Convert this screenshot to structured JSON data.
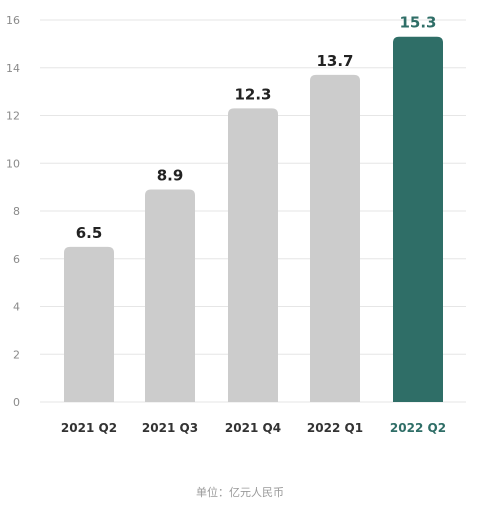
{
  "chart_data": {
    "type": "bar",
    "title": "",
    "xlabel": "",
    "ylabel": "",
    "unit_note": "单位：亿元人民币",
    "categories": [
      "2021 Q2",
      "2021 Q3",
      "2021 Q4",
      "2022 Q1",
      "2022 Q2"
    ],
    "values": [
      6.5,
      8.9,
      12.3,
      13.7,
      15.3
    ],
    "value_labels": [
      "6.5",
      "8.9",
      "12.3",
      "13.7",
      "15.3"
    ],
    "ylim": [
      0,
      16
    ],
    "yticks": [
      0,
      2,
      4,
      6,
      8,
      10,
      12,
      14,
      16
    ],
    "grid": true,
    "legend": "none",
    "highlight_index": 4,
    "colors": {
      "bar": "#cccccc",
      "highlight": "#2f6e67",
      "grid": "#e6e6e6",
      "label": "#222222",
      "highlight_label": "#2f6e67"
    }
  }
}
